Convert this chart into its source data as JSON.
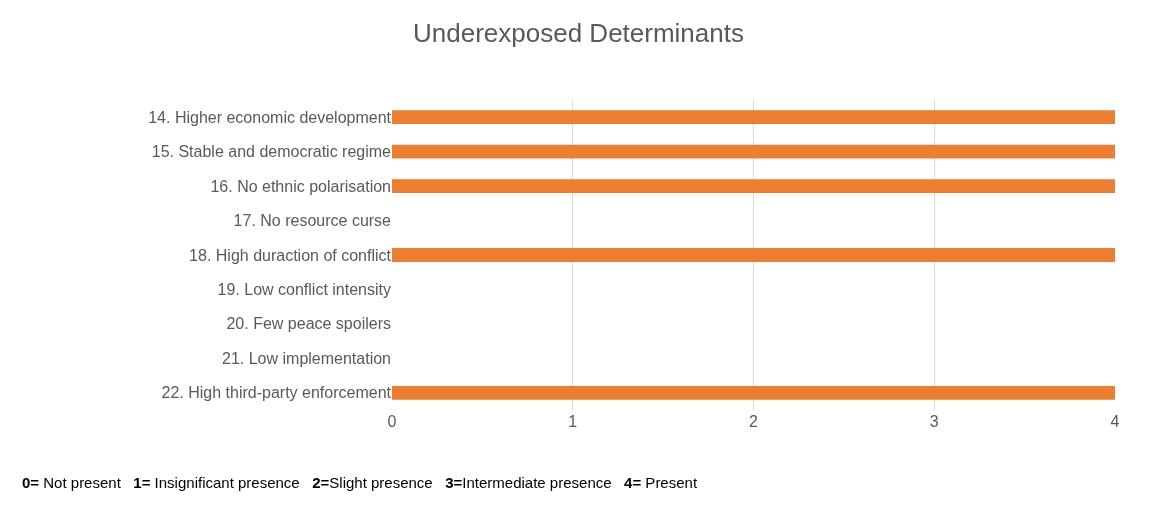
{
  "chart_data": {
    "type": "bar",
    "orientation": "horizontal",
    "title": "Underexposed Determinants",
    "categories": [
      "14. Higher economic development",
      "15. Stable and democratic regime",
      "16. No ethnic polarisation",
      "17. No resource curse",
      "18. High duraction of conflict",
      "19. Low conflict intensity",
      "20. Few peace spoilers",
      "21. Low implementation",
      "22. High third-party enforcement"
    ],
    "values": [
      4,
      4,
      4,
      0,
      4,
      0,
      0,
      0,
      4
    ],
    "color": "#ed7d31",
    "xlim": [
      0,
      4
    ],
    "xticks": [
      0,
      1,
      2,
      3,
      4
    ],
    "grid": "x",
    "annotations": [
      "0= Not present",
      "1= Insignificant presence",
      "2=Slight presence",
      "3=Intermediate presence",
      "4= Present"
    ]
  }
}
